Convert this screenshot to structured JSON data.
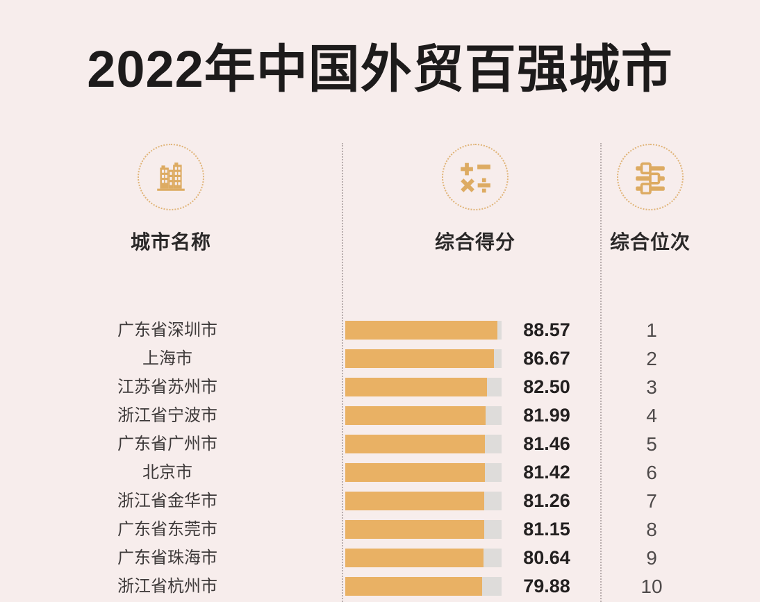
{
  "title": "2022年中国外贸百强城市",
  "columns": [
    {
      "label": "城市名称",
      "icon": "buildings-icon"
    },
    {
      "label": "综合得分",
      "icon": "math-operators-icon"
    },
    {
      "label": "综合位次",
      "icon": "sliders-icon"
    }
  ],
  "rows": [
    {
      "city": "广东省深圳市",
      "score": "88.57",
      "rank": "1"
    },
    {
      "city": "上海市",
      "score": "86.67",
      "rank": "2"
    },
    {
      "city": "江苏省苏州市",
      "score": "82.50",
      "rank": "3"
    },
    {
      "city": "浙江省宁波市",
      "score": "81.99",
      "rank": "4"
    },
    {
      "city": "广东省广州市",
      "score": "81.46",
      "rank": "5"
    },
    {
      "city": "北京市",
      "score": "81.42",
      "rank": "6"
    },
    {
      "city": "浙江省金华市",
      "score": "81.26",
      "rank": "7"
    },
    {
      "city": "广东省东莞市",
      "score": "81.15",
      "rank": "8"
    },
    {
      "city": "广东省珠海市",
      "score": "80.64",
      "rank": "9"
    },
    {
      "city": "浙江省杭州市",
      "score": "79.88",
      "rank": "10"
    }
  ],
  "chart_data": {
    "type": "bar",
    "orientation": "horizontal",
    "title": "2022年中国外贸百强城市",
    "categories": [
      "广东省深圳市",
      "上海市",
      "江苏省苏州市",
      "浙江省宁波市",
      "广东省广州市",
      "北京市",
      "浙江省金华市",
      "广东省东莞市",
      "广东省珠海市",
      "浙江省杭州市"
    ],
    "series": [
      {
        "name": "综合得分",
        "values": [
          88.57,
          86.67,
          82.5,
          81.99,
          81.46,
          81.42,
          81.26,
          81.15,
          80.64,
          79.88
        ]
      },
      {
        "name": "综合位次",
        "values": [
          1,
          2,
          3,
          4,
          5,
          6,
          7,
          8,
          9,
          10
        ]
      }
    ],
    "xlim": [
      0,
      91.2
    ],
    "grid": false,
    "legend": false,
    "colors": {
      "background": "#f7edec",
      "bar": "#e9b164",
      "track": "#dedcda",
      "accent_gold": "#ddab62",
      "dotted_circle": "#e0b478",
      "divider": "#b9aeae",
      "title_text": "#1d1b1b",
      "rank_text": "#4e4a4a"
    }
  }
}
